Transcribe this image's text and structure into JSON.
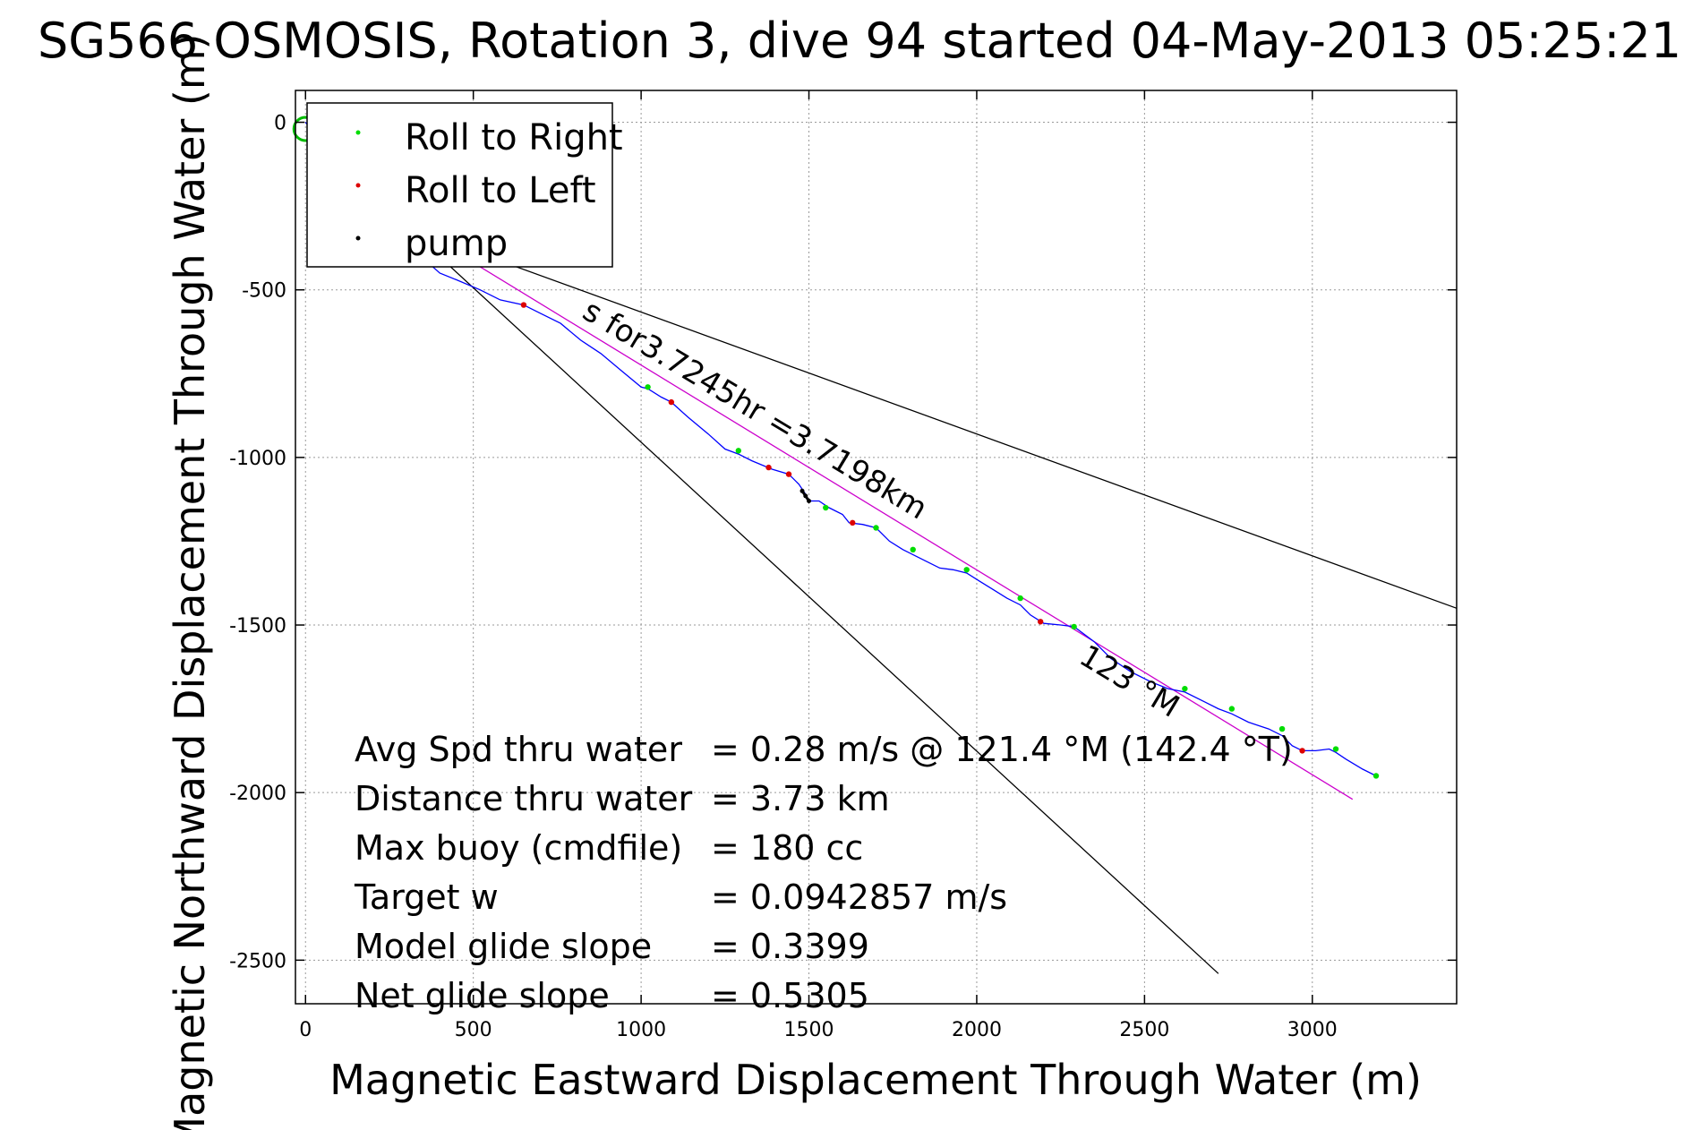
{
  "chart_data": {
    "type": "scatter",
    "title": "SG566 OSMOSIS, Rotation 3, dive 94 started 04-May-2013 05:25:21",
    "xlabel": "Magnetic Eastward Displacement Through Water (m)",
    "ylabel": "Magnetic Northward Displacement Through Water (m)",
    "xlim": [
      -30,
      3430
    ],
    "ylim": [
      -2630,
      95
    ],
    "xticks": [
      0,
      500,
      1000,
      1500,
      2000,
      2500,
      3000
    ],
    "xtick_labels": [
      "0",
      "500",
      "1000",
      "1500",
      "2000",
      "2500",
      "3000"
    ],
    "yticks": [
      0,
      -500,
      -1000,
      -1500,
      -2000,
      -2500
    ],
    "ytick_labels": [
      "0",
      "-500",
      "-1000",
      "-1500",
      "-2000",
      "-2500"
    ],
    "grid": true,
    "legend_position": "top-left",
    "legend": [
      {
        "label": "Roll to Right",
        "color": "#00dd00"
      },
      {
        "label": "Roll to Left",
        "color": "#dd0000"
      },
      {
        "label": "pump",
        "color": "#000000"
      }
    ],
    "track": {
      "color": "#0000ff",
      "x": [
        0,
        100,
        200,
        300,
        400,
        450,
        520,
        580,
        650,
        700,
        760,
        820,
        880,
        940,
        1000,
        1020,
        1060,
        1090,
        1140,
        1200,
        1250,
        1290,
        1330,
        1390,
        1440,
        1470,
        1490,
        1500,
        1530,
        1560,
        1600,
        1620,
        1660,
        1700,
        1740,
        1780,
        1810,
        1850,
        1890,
        1930,
        1970,
        2010,
        2050,
        2090,
        2130,
        2160,
        2200,
        2250,
        2290,
        2350,
        2400,
        2460,
        2520,
        2570,
        2620,
        2680,
        2720,
        2760,
        2810,
        2870,
        2910,
        2940,
        2970,
        3010,
        3050,
        3070,
        3100,
        3150,
        3190
      ],
      "y": [
        0,
        -120,
        -240,
        -360,
        -450,
        -470,
        -500,
        -530,
        -545,
        -570,
        -600,
        -650,
        -690,
        -740,
        -790,
        -795,
        -820,
        -835,
        -880,
        -930,
        -975,
        -990,
        -1010,
        -1035,
        -1050,
        -1080,
        -1110,
        -1130,
        -1130,
        -1150,
        -1170,
        -1195,
        -1200,
        -1210,
        -1250,
        -1275,
        -1290,
        -1310,
        -1330,
        -1335,
        -1345,
        -1370,
        -1395,
        -1420,
        -1440,
        -1470,
        -1495,
        -1500,
        -1505,
        -1550,
        -1600,
        -1640,
        -1670,
        -1690,
        -1700,
        -1730,
        -1750,
        -1765,
        -1790,
        -1810,
        -1830,
        -1860,
        -1875,
        -1875,
        -1870,
        -1880,
        -1900,
        -1930,
        -1950
      ]
    },
    "markers": {
      "roll_right": {
        "color": "#00dd00",
        "x": [
          1020,
          1290,
          1550,
          1700,
          1810,
          1970,
          2130,
          2290,
          2620,
          2760,
          2910,
          3070,
          3190
        ],
        "y": [
          -790,
          -980,
          -1150,
          -1210,
          -1275,
          -1335,
          -1420,
          -1505,
          -1690,
          -1750,
          -1810,
          -1870,
          -1950
        ]
      },
      "roll_left": {
        "color": "#dd0000",
        "x": [
          650,
          1090,
          1380,
          1440,
          1630,
          2190,
          2970
        ],
        "y": [
          -545,
          -835,
          -1030,
          -1050,
          -1195,
          -1490,
          -1875
        ]
      },
      "pump": {
        "color": "#000000",
        "x": [
          1480,
          1490,
          1500
        ],
        "y": [
          -1100,
          -1115,
          -1130
        ]
      }
    },
    "reference_lines": [
      {
        "color": "#000000",
        "x": [
          460,
          3430
        ],
        "y": [
          -370,
          -1450
        ]
      },
      {
        "color": "#000000",
        "x": [
          420,
          2720
        ],
        "y": [
          -420,
          -2540
        ]
      },
      {
        "color": "#cc00cc",
        "x": [
          420,
          3120
        ],
        "y": [
          -370,
          -2020
        ]
      }
    ],
    "start_circle": {
      "color": "#00bb00",
      "x": 0,
      "y": -20
    },
    "annotations": [
      {
        "id": "current",
        "text": "s for3.7245hr =3.7198km",
        "x": 820,
        "y": -580,
        "rotate": 31
      },
      {
        "id": "heading",
        "text": "123 °M",
        "x": 2300,
        "y": -1610,
        "rotate": 31
      }
    ],
    "stats": [
      {
        "label": "Avg Spd thru water",
        "value": "=  0.28 m/s @ 121.4 °M (142.4 °T)"
      },
      {
        "label": "Distance thru water",
        "value": "=  3.73 km"
      },
      {
        "label": "Max buoy (cmdfile)",
        "value": "= 180 cc"
      },
      {
        "label": "Target w",
        "value": "= 0.0942857 m/s"
      },
      {
        "label": "Model glide slope",
        "value": "= 0.3399"
      },
      {
        "label": "Net glide slope",
        "value": "= 0.5305"
      }
    ]
  }
}
